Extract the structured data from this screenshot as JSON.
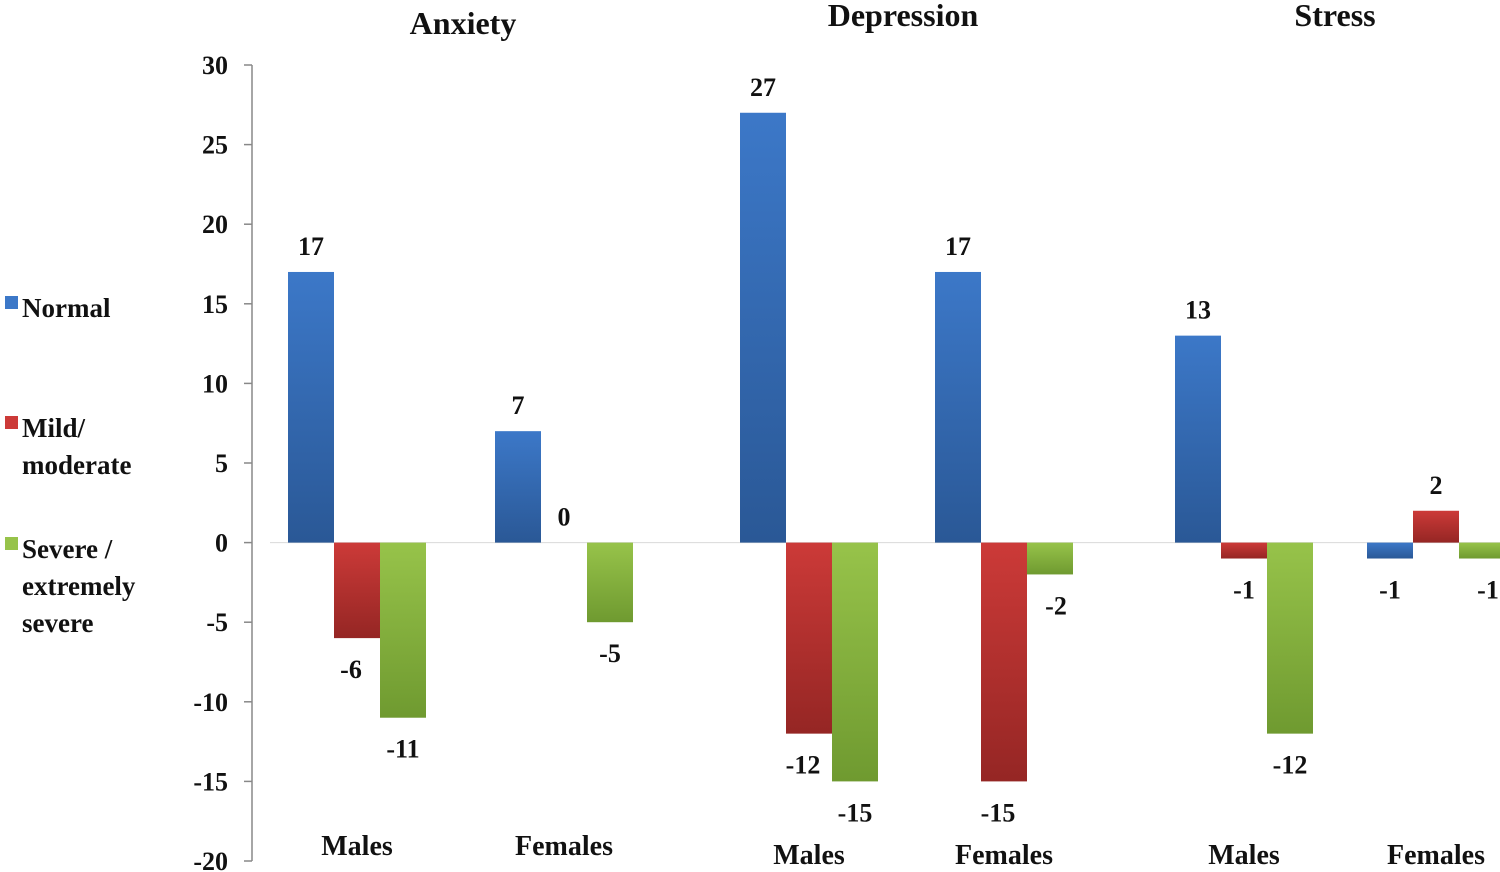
{
  "chart_data": {
    "type": "bar",
    "yaxis": {
      "min": -20,
      "max": 30,
      "step": 5,
      "ticks": [
        "30",
        "25",
        "20",
        "15",
        "10",
        "5",
        "0",
        "-5",
        "-10",
        "-15",
        "-20"
      ]
    },
    "panels": [
      {
        "title": "Anxiety",
        "groups": [
          {
            "label": "Males",
            "values": [
              17,
              -6,
              -11
            ],
            "labels": [
              "17",
              "-6",
              "-11"
            ]
          },
          {
            "label": "Females",
            "values": [
              7,
              0,
              -5
            ],
            "labels": [
              "7",
              "0",
              "-5"
            ]
          }
        ]
      },
      {
        "title": "Depression",
        "groups": [
          {
            "label": "Males",
            "values": [
              27,
              -12,
              -15
            ],
            "labels": [
              "27",
              "-12",
              "-15"
            ]
          },
          {
            "label": "Females",
            "values": [
              17,
              -15,
              -2
            ],
            "labels": [
              "17",
              "-15",
              "-2"
            ]
          }
        ]
      },
      {
        "title": "Stress",
        "groups": [
          {
            "label": "Males",
            "values": [
              13,
              -1,
              -12
            ],
            "labels": [
              "13",
              "-1",
              "-12"
            ]
          },
          {
            "label": "Females",
            "values": [
              -1,
              2,
              -1
            ],
            "labels": [
              "-1",
              "2",
              "-1"
            ]
          }
        ]
      }
    ],
    "series": [
      {
        "name": "Normal",
        "legend_lines": [
          "Normal"
        ],
        "color": "#3c78c8",
        "color_dark": "#2a5896"
      },
      {
        "name": "Mild/ moderate",
        "legend_lines": [
          "Mild/",
          "moderate"
        ],
        "color": "#cc3a38",
        "color_dark": "#952624"
      },
      {
        "name": "Severe / extremely severe",
        "legend_lines": [
          "Severe /",
          "extremely",
          "severe"
        ],
        "color": "#97c34a",
        "color_dark": "#6f9a30"
      }
    ]
  }
}
